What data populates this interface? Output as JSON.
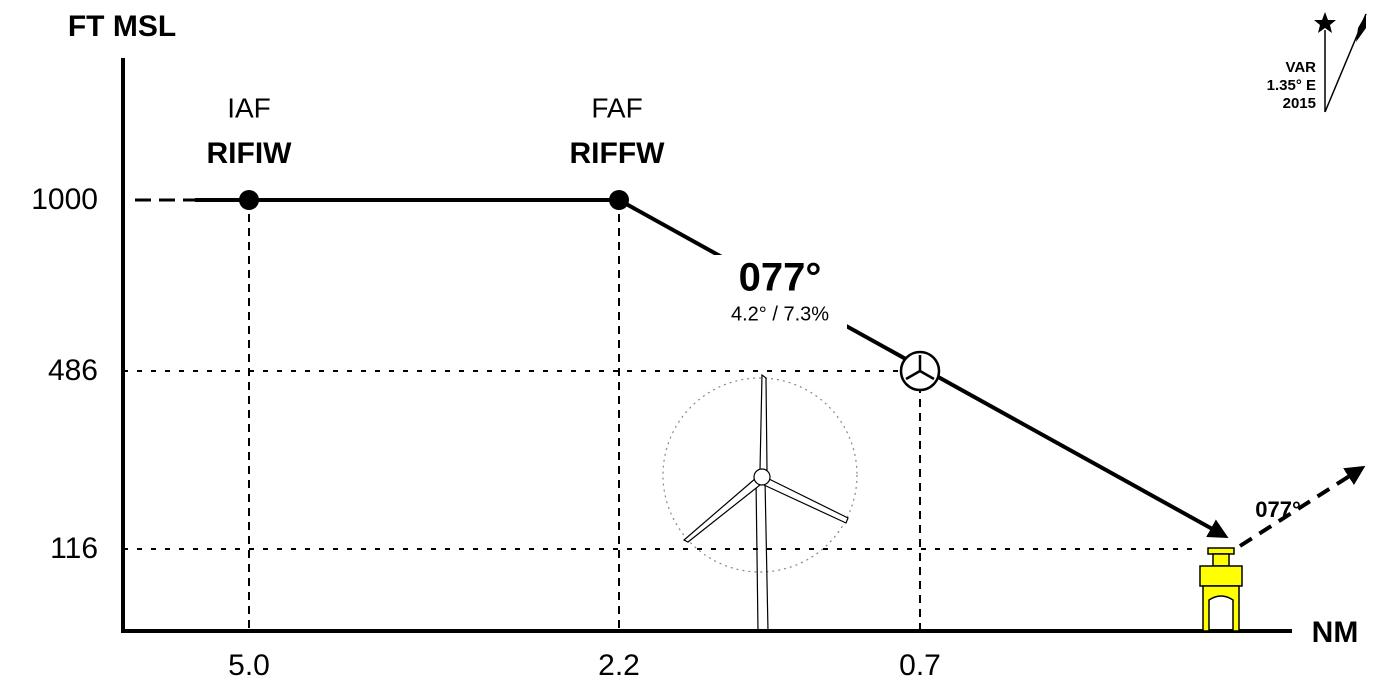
{
  "axes": {
    "y_label": "FT MSL",
    "x_label": "NM"
  },
  "altitudes": [
    "1000",
    "486",
    "116"
  ],
  "distances": [
    "5.0",
    "2.2",
    "0.7"
  ],
  "fixes": [
    {
      "role": "IAF",
      "name": "RIFIW"
    },
    {
      "role": "FAF",
      "name": "RIFFW"
    }
  ],
  "final_course": "077°",
  "glide_path": "4.2° / 7.3%",
  "missed_course": "077°",
  "variation": [
    "VAR",
    "1.35° E",
    "2015"
  ]
}
